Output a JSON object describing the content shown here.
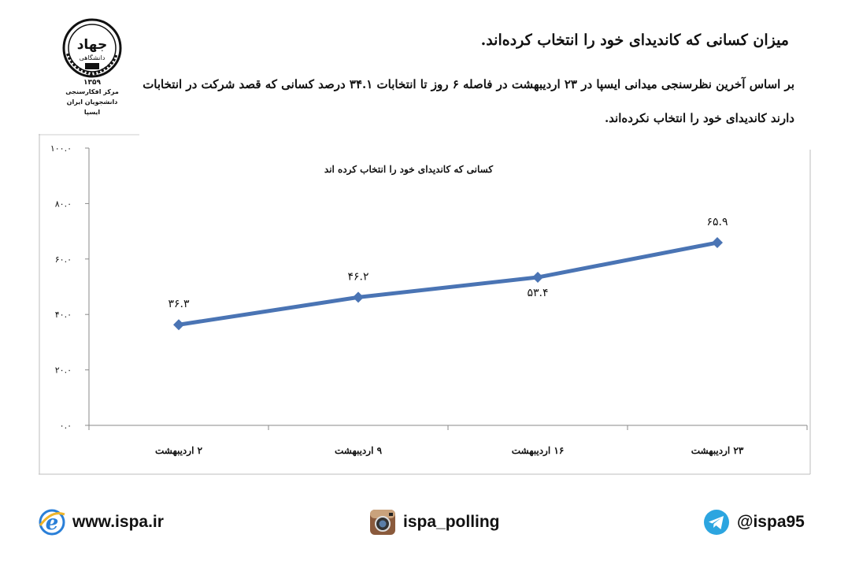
{
  "logo": {
    "name": "جهاد",
    "tag": "دانشگاهی",
    "year": "۱۳۵۹",
    "org_line1": "مرکز افکارسنجی دانشجویان ایران",
    "org_line2": "ایسپا"
  },
  "headline": "میزان کسانی که کاندیدای خود را انتخاب کرده‌اند.",
  "body_text": "بر اساس آخرین نظرسنجی میدانی ایسپا در ۲۳ اردیبهشت در فاصله ۶ روز تا انتخابات ۳۴.۱ درصد کسانی که قصد شرکت در انتخابات دارند کاندیدای خود را انتخاب نکرده‌اند.",
  "chart_data": {
    "type": "line",
    "title": "کسانی که کاندیدای خود را انتخاب کرده اند",
    "categories": [
      "۲ اردیبهشت",
      "۹ اردیبهشت",
      "۱۶ اردیبهشت",
      "۲۳ اردیبهشت"
    ],
    "values": [
      36.3,
      46.2,
      53.4,
      65.9
    ],
    "data_labels": [
      "۳۶.۳",
      "۴۶.۲",
      "۵۳.۴",
      "۶۵.۹"
    ],
    "ylim": [
      0,
      100
    ],
    "y_ticks": [
      0,
      20,
      40,
      60,
      80,
      100
    ],
    "y_tick_labels": [
      "۰.۰",
      "۲۰.۰",
      "۴۰.۰",
      "۶۰.۰",
      "۸۰.۰",
      "۱۰۰.۰"
    ],
    "line_color": "#4a74b4",
    "gridlines": false
  },
  "footer": {
    "website": "www.ispa.ir",
    "instagram": "ispa_polling",
    "telegram": "@ispa95"
  },
  "colors": {
    "line": "#4a74b4",
    "telegram": "#2ca5e0",
    "ie_blue": "#2a7fd8"
  }
}
